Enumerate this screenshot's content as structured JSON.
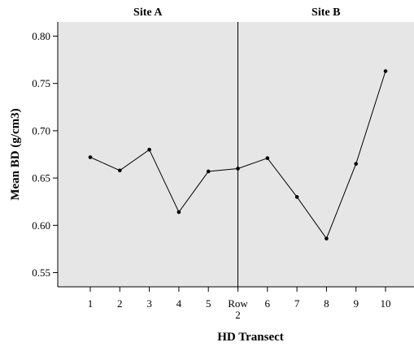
{
  "chart_data": {
    "type": "line",
    "panels": [
      {
        "title": "Site A"
      },
      {
        "title": "Site B"
      }
    ],
    "xlabel": "HD Transect",
    "ylabel": "Mean BD (g/cm3)",
    "ylim": [
      0.535,
      0.815
    ],
    "yticks": [
      {
        "value": 0.55,
        "label": "0.55"
      },
      {
        "value": 0.6,
        "label": "0.60"
      },
      {
        "value": 0.65,
        "label": "0.65"
      },
      {
        "value": 0.7,
        "label": "0.70"
      },
      {
        "value": 0.75,
        "label": "0.75"
      },
      {
        "value": 0.8,
        "label": "0.80"
      }
    ],
    "categories": [
      "1",
      "2",
      "3",
      "4",
      "5",
      "Row 2",
      "6",
      "7",
      "8",
      "9",
      "10"
    ],
    "series": [
      {
        "values": [
          0.672,
          0.658,
          0.68,
          0.614,
          0.657,
          0.66,
          0.671,
          0.63,
          0.586,
          0.665,
          0.763
        ]
      }
    ],
    "grid": false,
    "legend": "none",
    "colors": {
      "plot_background": "#e6e6e6",
      "line": "#000000",
      "marker": "#000000"
    }
  }
}
